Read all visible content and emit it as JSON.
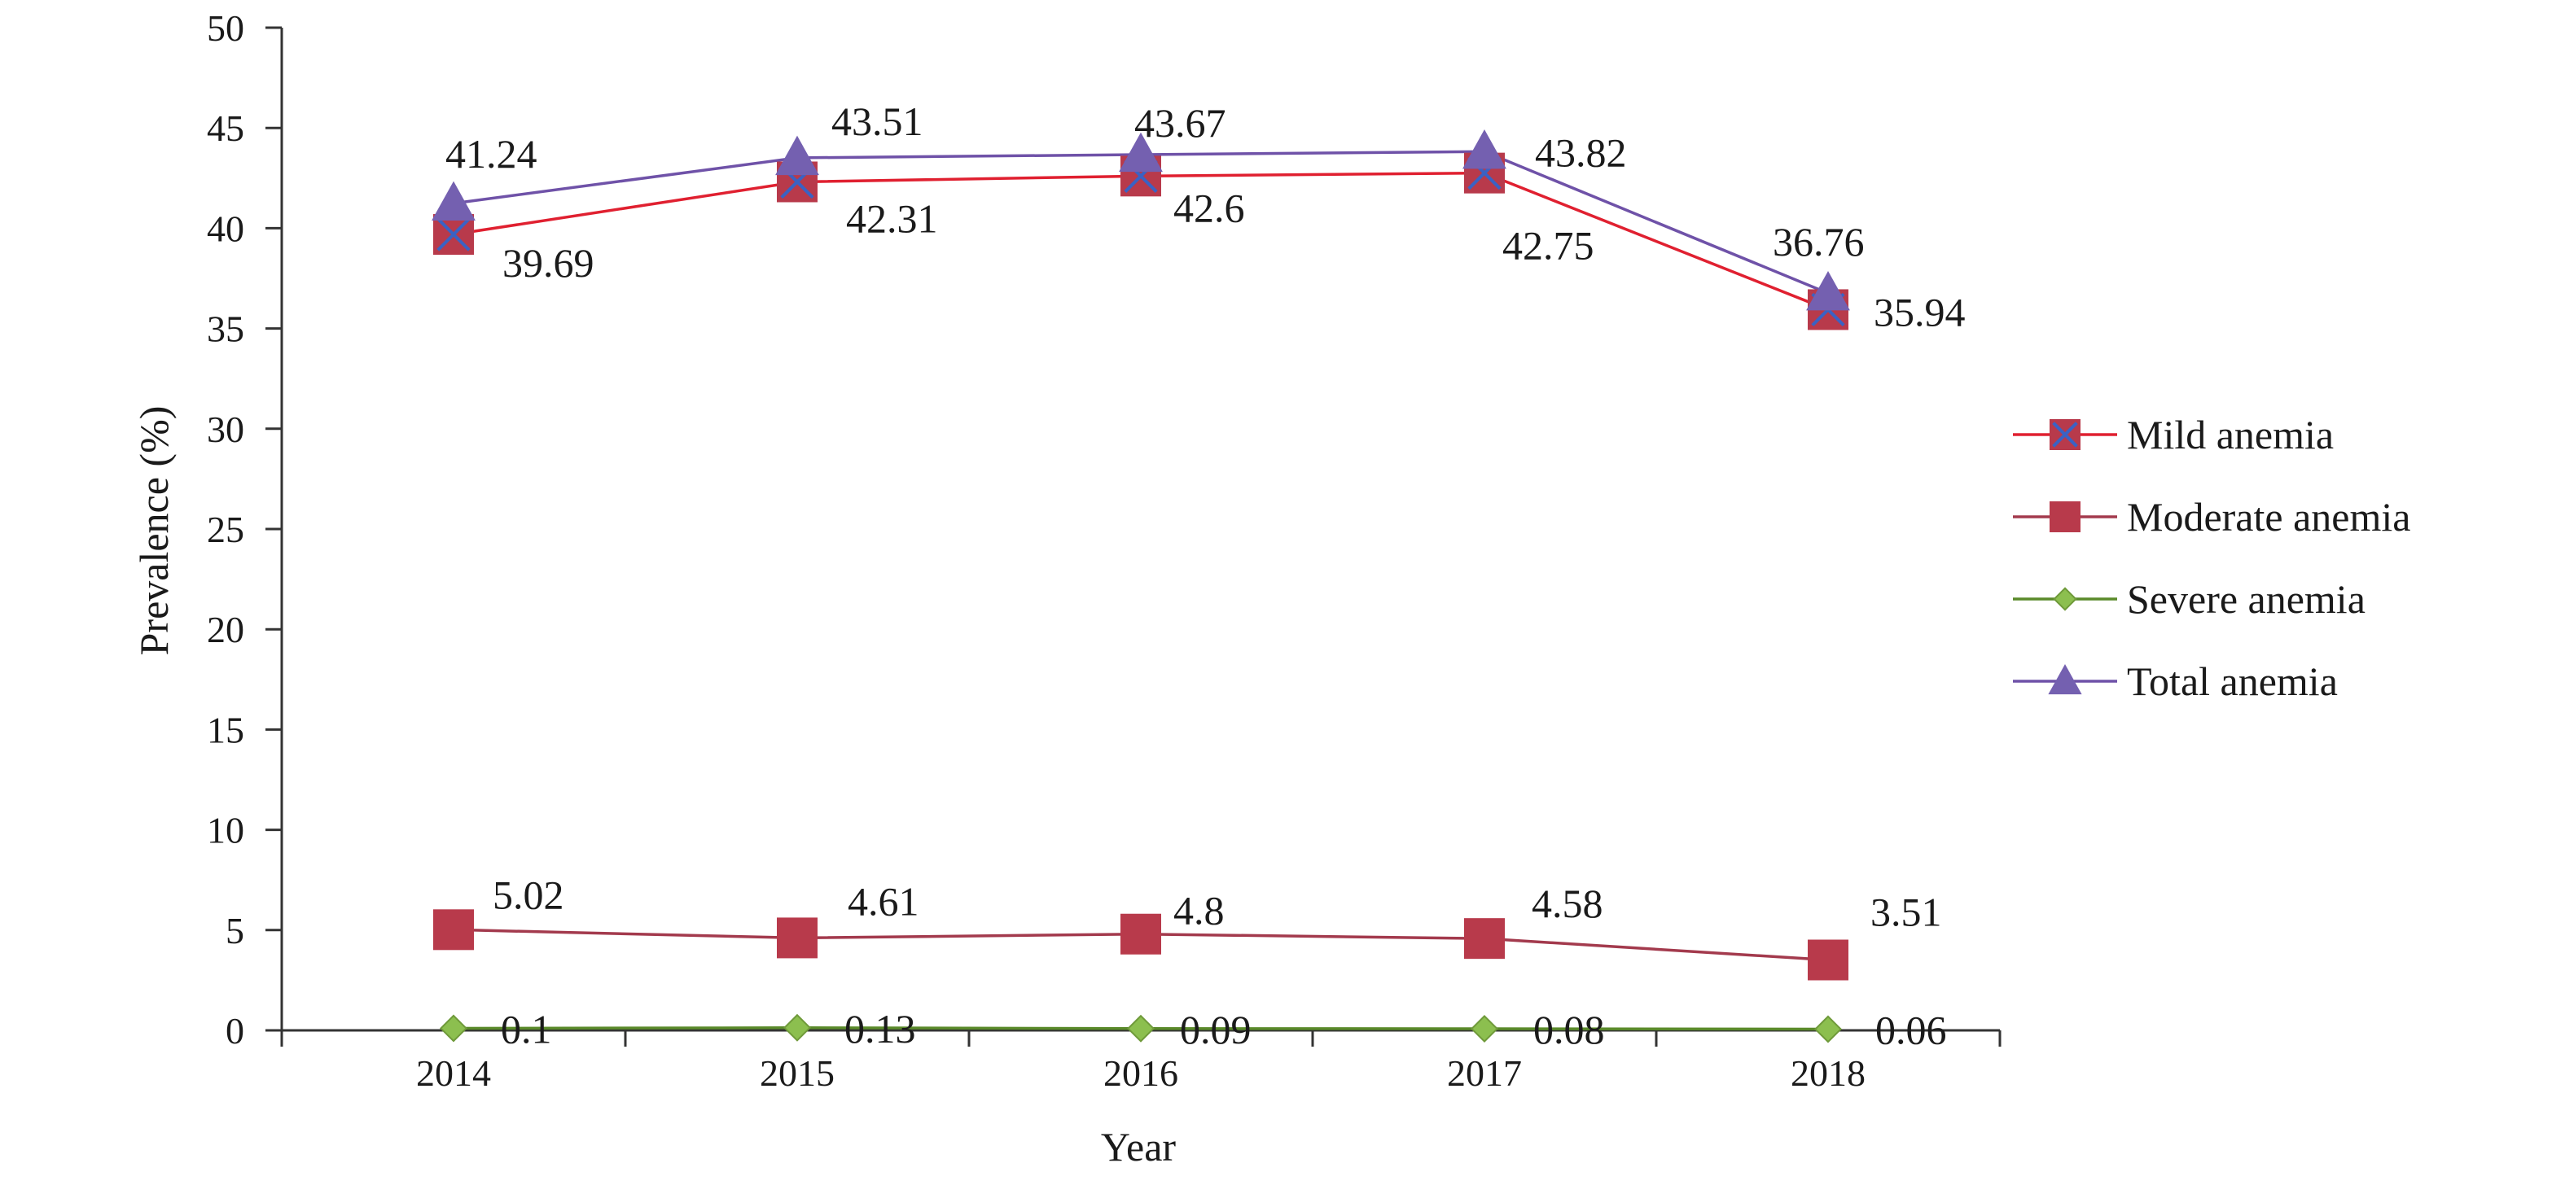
{
  "chart_data": {
    "type": "line",
    "categories": [
      "2014",
      "2015",
      "2016",
      "2017",
      "2018"
    ],
    "xlabel": "Year",
    "ylabel": "Prevalence (%)",
    "ylim": [
      0,
      50
    ],
    "yticks": [
      0,
      5,
      10,
      15,
      20,
      25,
      30,
      35,
      40,
      45,
      50
    ],
    "ytick_labels": [
      "0",
      "5",
      "10",
      "15",
      "20",
      "25",
      "30",
      "35",
      "40",
      "45",
      "50"
    ],
    "grid": false,
    "legend_position": "right",
    "series": [
      {
        "name": "Mild anemia",
        "values": [
          39.69,
          42.31,
          42.6,
          42.75,
          35.94
        ],
        "labels": [
          "39.69",
          "42.31",
          "42.6",
          "42.75",
          "35.94"
        ],
        "line_color": "#e02030",
        "marker_color": "#b83a4b",
        "marker": "square-x",
        "label_side": "below"
      },
      {
        "name": "Moderate  anemia",
        "values": [
          5.02,
          4.61,
          4.8,
          4.58,
          3.51
        ],
        "labels": [
          "5.02",
          "4.61",
          "4.8",
          "4.58",
          "3.51"
        ],
        "line_color": "#a33a4d",
        "marker_color": "#b83a4b",
        "marker": "square",
        "label_side": "above"
      },
      {
        "name": "Severe anemia",
        "values": [
          0.1,
          0.13,
          0.09,
          0.08,
          0.06
        ],
        "labels": [
          "0.1",
          "0.13",
          "0.09",
          "0.08",
          "0.06"
        ],
        "line_color": "#5a8a2a",
        "marker_color": "#8cbf4f",
        "marker": "diamond",
        "label_side": "right"
      },
      {
        "name": "Total anemia",
        "values": [
          41.24,
          43.51,
          43.67,
          43.82,
          36.76
        ],
        "labels": [
          "41.24",
          "43.51",
          "43.67",
          "43.82",
          "36.76"
        ],
        "line_color": "#6f52a8",
        "marker_color": "#7460b0",
        "marker": "triangle",
        "label_side": "above"
      }
    ]
  }
}
